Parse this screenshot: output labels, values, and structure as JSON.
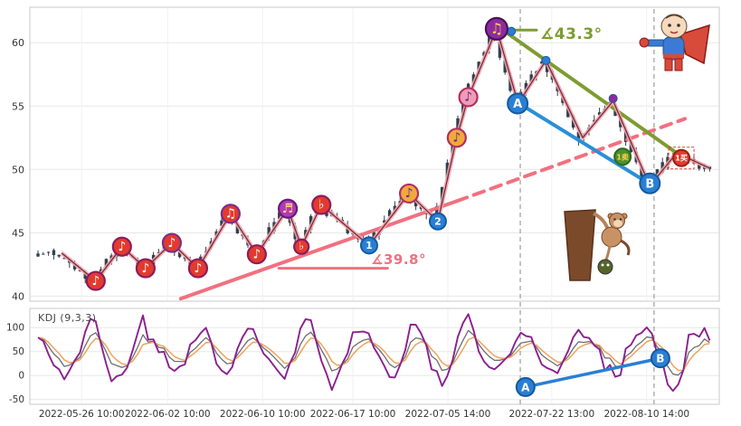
{
  "style": {
    "bg": "#ffffff",
    "panel_border": "#c9c9c9",
    "grid": "#e7e7e7",
    "vgrid": "#f1f1f1",
    "axis_text": "#333333",
    "vline": "#8a8a8a"
  },
  "x_axis": {
    "labels": [
      "2022-05-26 10:00",
      "2022-06-02 10:00",
      "2022-06-10 10:00",
      "2022-06-17 10:00",
      "2022-07-05 14:00",
      "2022-07-22 13:00",
      "2022-08-10 14:00"
    ],
    "tick_idx": [
      8.3,
      24.7,
      42.8,
      60,
      78.1,
      97.9,
      116
    ]
  },
  "vlines_idx": [
    91.9,
    117.4
  ],
  "chart_data": [
    {
      "type": "candlestick",
      "panel": "price",
      "title": "",
      "ylim": [
        39.6,
        62.8
      ],
      "yticks": [
        60,
        55,
        50,
        45,
        40
      ],
      "n_candles": 129,
      "seed": 987654,
      "candle_color": "#31404e",
      "zigzag": {
        "glow": "#f2a3ab",
        "core": "#6b2737",
        "points": [
          [
            4.5,
            43.4
          ],
          [
            11,
            41.2
          ],
          [
            16,
            43.9
          ],
          [
            20.5,
            42.2
          ],
          [
            25.5,
            44.2
          ],
          [
            30.5,
            42.2
          ],
          [
            36.7,
            46.5
          ],
          [
            41.7,
            43.3
          ],
          [
            47.6,
            46.9
          ],
          [
            50.2,
            43.9
          ],
          [
            54,
            47.2
          ],
          [
            63.1,
            44.0
          ],
          [
            70.7,
            48.1
          ],
          [
            76.2,
            45.9
          ],
          [
            79.8,
            52.5
          ],
          [
            82,
            55.7
          ],
          [
            87.4,
            61.1
          ],
          [
            91.5,
            55.2
          ],
          [
            96.8,
            58.6
          ],
          [
            103.8,
            52.5
          ],
          [
            109.6,
            55.4
          ],
          [
            116.6,
            48.7
          ],
          [
            121.7,
            51.3
          ],
          [
            128,
            50.1
          ]
        ]
      },
      "trend_lines": [
        {
          "name": "support-trendline",
          "color": "#f2707f",
          "width": 4,
          "points": [
            [
              27.2,
              39.8
            ],
            [
              79.8,
              47.5
            ]
          ]
        },
        {
          "name": "support-trendline-dashed",
          "color": "#f2707f",
          "width": 4,
          "dash": "12 8",
          "points": [
            [
              79.8,
              47.5
            ],
            [
              123.3,
              54.0
            ]
          ]
        },
        {
          "name": "angle-base-pink",
          "color": "#f2707f",
          "width": 3,
          "points": [
            [
              45.9,
              42.2
            ],
            [
              66.6,
              42.2
            ]
          ]
        },
        {
          "name": "angle-base-green",
          "color": "#7d9c30",
          "width": 3,
          "points": [
            [
              88.6,
              61.0
            ],
            [
              95,
              61.0
            ]
          ]
        },
        {
          "name": "resistance-green",
          "color": "#7d9c30",
          "width": 4,
          "points": [
            [
              88.6,
              61.0
            ],
            [
              121.7,
              51.3
            ]
          ]
        },
        {
          "name": "ab-decline-blue",
          "color": "#2a8fd8",
          "width": 4,
          "arrow": true,
          "points": [
            [
              91.7,
              55.2
            ],
            [
              117.2,
              48.7
            ]
          ]
        }
      ],
      "annotations": [
        {
          "name": "angle-43",
          "text": "∡43.3°",
          "color": "#7d9c30"
        },
        {
          "name": "angle-39",
          "text": "∡39.8°",
          "color": "#f2707f"
        }
      ],
      "note_markers": [
        {
          "glyph": "♪",
          "idx": 11,
          "price": 41.2,
          "fill": "#e23b2e",
          "ring": "#8c1b5e",
          "text": "#ffffff",
          "r": 10
        },
        {
          "glyph": "♪",
          "idx": 16,
          "price": 43.9,
          "fill": "#e23b2e",
          "ring": "#8c1b5e",
          "text": "#ffffff",
          "r": 10
        },
        {
          "glyph": "♪",
          "idx": 20.5,
          "price": 42.2,
          "fill": "#e23b2e",
          "ring": "#8c1b5e",
          "text": "#ffffff",
          "r": 10
        },
        {
          "glyph": "♪",
          "idx": 25.5,
          "price": 44.2,
          "fill": "#e23b2e",
          "ring": "#7b2d8b",
          "text": "#ffffff",
          "r": 10
        },
        {
          "glyph": "♪",
          "idx": 30.5,
          "price": 42.2,
          "fill": "#e23b2e",
          "ring": "#8c1b5e",
          "text": "#ffffff",
          "r": 10
        },
        {
          "glyph": "♫",
          "idx": 36.7,
          "price": 46.5,
          "fill": "#e23b2e",
          "ring": "#7b2d8b",
          "text": "#ffffff",
          "r": 10
        },
        {
          "glyph": "♪",
          "idx": 41.7,
          "price": 43.3,
          "fill": "#e23b2e",
          "ring": "#8c1b5e",
          "text": "#ffffff",
          "r": 10
        },
        {
          "glyph": "♬",
          "idx": 47.6,
          "price": 46.9,
          "fill": "#b23ab0",
          "ring": "#6a1b7a",
          "text": "#ffe082",
          "r": 10
        },
        {
          "glyph": "♭",
          "idx": 50.2,
          "price": 43.9,
          "fill": "#e23b2e",
          "ring": "#8c1b5e",
          "text": "#ffffff",
          "r": 8
        },
        {
          "glyph": "♭",
          "idx": 54,
          "price": 47.2,
          "fill": "#e23b2e",
          "ring": "#8c1b5e",
          "text": "#ffffff",
          "r": 10
        },
        {
          "glyph": "♪",
          "idx": 70.7,
          "price": 48.1,
          "fill": "#f2a93b",
          "ring": "#b03060",
          "text": "#5a2d8b",
          "r": 10
        },
        {
          "glyph": "♪",
          "idx": 79.8,
          "price": 52.5,
          "fill": "#f2a93b",
          "ring": "#b03060",
          "text": "#5a2d8b",
          "r": 10
        },
        {
          "glyph": "♪",
          "idx": 82,
          "price": 55.7,
          "fill": "#f29bb5",
          "ring": "#b03060",
          "text": "#5a2d8b",
          "r": 10
        },
        {
          "glyph": "♫",
          "idx": 87.4,
          "price": 61.1,
          "fill": "#8d2b9e",
          "ring": "#4a1257",
          "text": "#ffd24a",
          "r": 12
        }
      ],
      "wave_markers": [
        {
          "label": "1",
          "idx": 63.1,
          "price": 44.0,
          "r": 9,
          "fill": "#2a7fd4",
          "ring": "#155a9e"
        },
        {
          "label": "2",
          "idx": 76.2,
          "price": 45.9,
          "r": 9,
          "fill": "#2a7fd4",
          "ring": "#155a9e"
        },
        {
          "label": "A",
          "idx": 91.4,
          "price": 55.2,
          "r": 11,
          "fill": "#2a7fd4",
          "ring": "#155a9e"
        },
        {
          "label": "B",
          "idx": 116.6,
          "price": 48.9,
          "r": 11,
          "fill": "#2a7fd4",
          "ring": "#155a9e"
        }
      ],
      "dot_markers": [
        {
          "idx": 90.2,
          "price": 60.9,
          "fill": "#2a7fd4"
        },
        {
          "idx": 96.8,
          "price": 58.6,
          "fill": "#2a7fd4"
        },
        {
          "idx": 109.6,
          "price": 55.6,
          "fill": "#8d2b9e"
        }
      ],
      "signal_markers": [
        {
          "label": "1卖",
          "idx": 111.4,
          "price": 51.0,
          "fill": "#4f8f2f",
          "ring": "#2e6b1a",
          "text": "#ffd24a",
          "box": false
        },
        {
          "label": "1买",
          "idx": 122.6,
          "price": 50.9,
          "fill": "#e23b2e",
          "ring": "#9a1f14",
          "text": "#ffffff",
          "box": true
        }
      ]
    },
    {
      "type": "line",
      "panel": "kdj",
      "title": "KDJ (9,3,3)",
      "ylim": [
        -60,
        140
      ],
      "yticks": [
        100,
        50,
        0,
        -50
      ],
      "seed": 24680,
      "series": [
        {
          "name": "K",
          "color": "#6e6e6e"
        },
        {
          "name": "D",
          "color": "#f0a35c"
        },
        {
          "name": "J",
          "color": "#8b1f8f"
        }
      ],
      "ab_markers": {
        "color": "#2a7fd4",
        "ring": "#155a9e",
        "a": {
          "label": "A",
          "idx": 92.9,
          "value": -24
        },
        "b": {
          "label": "B",
          "idx": 118.6,
          "value": 36
        }
      }
    }
  ]
}
